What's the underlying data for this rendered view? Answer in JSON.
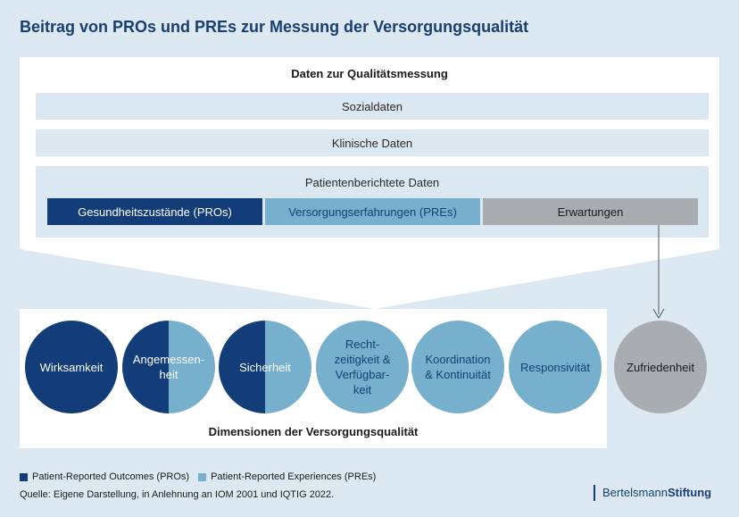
{
  "title": "Beitrag von PROs und PREs zur Messung der Versorgungsqualität",
  "data_section": {
    "heading": "Daten zur Qualitätsmessung",
    "social": "Sozialdaten",
    "clinical": "Klinische Daten",
    "patient": {
      "label": "Patientenberichtete Daten",
      "items": [
        "Gesundheitszustände (PROs)",
        "Versorgungserfahrungen (PREs)",
        "Erwartungen"
      ]
    }
  },
  "dimensions": {
    "label": "Dimensionen der Versorgungsqualität",
    "items": [
      {
        "text": "Wirksamkeit",
        "kind": "PROs"
      },
      {
        "text": "Angemessen-\nheit",
        "kind": "PROs + PREs"
      },
      {
        "text": "Sicherheit",
        "kind": "PROs + PREs"
      },
      {
        "text": "Recht-\nzeitigkeit &\nVerfügbar-\nkeit",
        "kind": "PREs"
      },
      {
        "text": "Koordination\n& Kontinuität",
        "kind": "PREs"
      },
      {
        "text": "Responsivität",
        "kind": "PREs"
      }
    ],
    "outcome": "Zufriedenheit"
  },
  "legend": {
    "pros": "Patient-Reported Outcomes (PROs)",
    "pres": "Patient-Reported Experiences (PREs)"
  },
  "source": "Quelle: Eigene Darstellung, in Anlehnung an IOM 2001 und IQTIG 2022.",
  "brand": {
    "part1": "Bertelsmann",
    "part2": "Stiftung"
  },
  "colors": {
    "pros": "#123d78",
    "pres": "#77b0cc",
    "expectations": "#a9adb1",
    "title": "#173f75"
  }
}
